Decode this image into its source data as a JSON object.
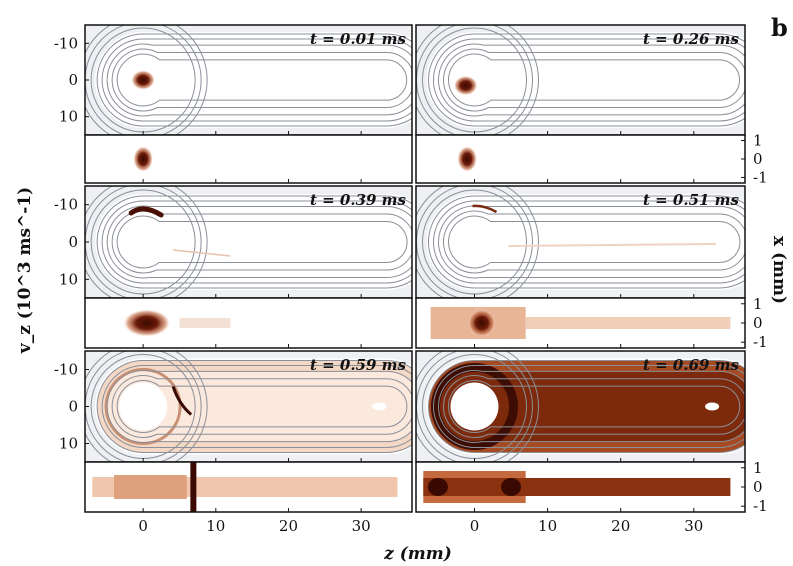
{
  "figure": {
    "panel_letter": "b",
    "xlabel": "z (mm)",
    "ylabel_left": "v_z (10^3 ms^-1)",
    "ylabel_right": "x (mm)"
  },
  "chart_data": {
    "type": "heatmap",
    "description_units": "phase-space density in (z, v_z) with spatial projection in (z, x)",
    "x_ticks": [
      "0",
      "10",
      "20",
      "30"
    ],
    "x_range": [
      -8,
      37
    ],
    "phase_y_ticks": [
      "-10",
      "0",
      "10"
    ],
    "phase_y_range": [
      -15,
      15
    ],
    "space_y_ticks": [
      "1",
      "0",
      "-1"
    ],
    "space_y_range": [
      -1.3,
      1.3
    ],
    "colormap": [
      "#ffffff",
      "#f3dccd",
      "#d9885a",
      "#a8431c",
      "#5a1406"
    ],
    "contour_color": "#8a8f98",
    "times": [
      {
        "label": "t = 0.01 ms",
        "t_ms": 0.01,
        "stage": 0
      },
      {
        "label": "t = 0.26 ms",
        "t_ms": 0.26,
        "stage": 1
      },
      {
        "label": "t = 0.39 ms",
        "t_ms": 0.39,
        "stage": 2
      },
      {
        "label": "t = 0.51 ms",
        "t_ms": 0.51,
        "stage": 3
      },
      {
        "label": "t = 0.59 ms",
        "t_ms": 0.59,
        "stage": 4
      },
      {
        "label": "t = 0.69 ms",
        "t_ms": 0.69,
        "stage": 5
      }
    ]
  }
}
